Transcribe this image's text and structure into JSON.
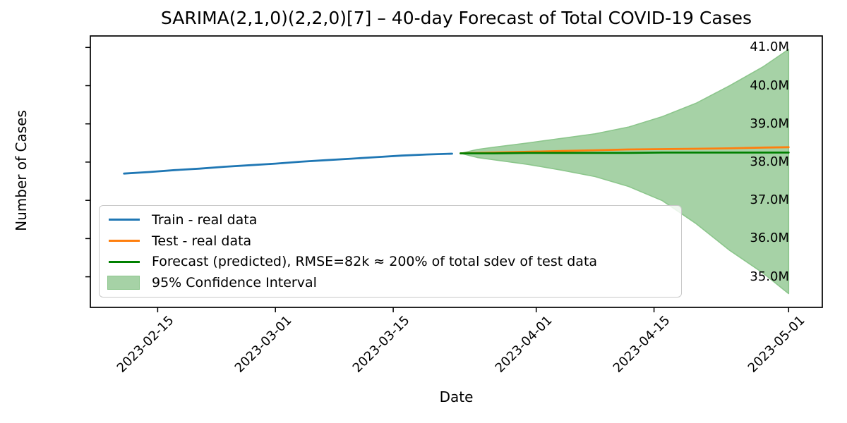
{
  "chart_data": {
    "type": "line",
    "title": "SARIMA(2,1,0)(2,2,0)[7] – 40-day Forecast of Total COVID-19 Cases",
    "xlabel": "Date",
    "ylabel": "Number of Cases",
    "value_unit": "millions of cases",
    "grid": false,
    "legend_position": "lower left",
    "xlim": [
      "2023-02-07",
      "2023-05-05"
    ],
    "ylim_m": [
      34.2,
      41.3
    ],
    "x_ticks": [
      "2023-02-15",
      "2023-03-01",
      "2023-03-15",
      "2023-04-01",
      "2023-04-15",
      "2023-05-01"
    ],
    "y_ticks_m": [
      35,
      36,
      37,
      38,
      39,
      40,
      41
    ],
    "y_tick_labels": [
      "35.0M",
      "36.0M",
      "37.0M",
      "38.0M",
      "39.0M",
      "40.0M",
      "41.0M"
    ],
    "series": [
      {
        "name": "Train - real data",
        "color": "#1f77b4",
        "x": [
          "2023-02-11",
          "2023-02-14",
          "2023-02-17",
          "2023-02-20",
          "2023-02-23",
          "2023-02-26",
          "2023-03-01",
          "2023-03-04",
          "2023-03-07",
          "2023-03-10",
          "2023-03-13",
          "2023-03-16",
          "2023-03-19",
          "2023-03-22"
        ],
        "y_m": [
          37.7,
          37.74,
          37.79,
          37.83,
          37.88,
          37.92,
          37.96,
          38.01,
          38.05,
          38.09,
          38.13,
          38.17,
          38.2,
          38.22
        ]
      },
      {
        "name": "Test - real data",
        "color": "#ff7f0e",
        "x": [
          "2023-03-23",
          "2023-03-27",
          "2023-03-31",
          "2023-04-04",
          "2023-04-08",
          "2023-04-12",
          "2023-04-16",
          "2023-04-20",
          "2023-04-24",
          "2023-04-28",
          "2023-05-01"
        ],
        "y_m": [
          38.23,
          38.25,
          38.27,
          38.29,
          38.31,
          38.33,
          38.34,
          38.35,
          38.36,
          38.38,
          38.39
        ]
      },
      {
        "name": "Forecast (predicted), RMSE=82k ≈ 200% of total sdev of test data",
        "color": "#008000",
        "x": [
          "2023-03-23",
          "2023-03-27",
          "2023-03-31",
          "2023-04-04",
          "2023-04-08",
          "2023-04-12",
          "2023-04-16",
          "2023-04-20",
          "2023-04-24",
          "2023-04-28",
          "2023-05-01"
        ],
        "y_m": [
          38.23,
          38.23,
          38.24,
          38.24,
          38.24,
          38.24,
          38.25,
          38.25,
          38.25,
          38.25,
          38.25
        ]
      }
    ],
    "confidence_band": {
      "name": "95% Confidence Interval",
      "fill_color": "#a6d2a6",
      "edge_color": "#8cc68c",
      "x": [
        "2023-03-23",
        "2023-03-25",
        "2023-03-27",
        "2023-03-31",
        "2023-04-04",
        "2023-04-08",
        "2023-04-12",
        "2023-04-16",
        "2023-04-20",
        "2023-04-24",
        "2023-04-28",
        "2023-05-01"
      ],
      "upper_m": [
        38.23,
        38.33,
        38.39,
        38.5,
        38.62,
        38.74,
        38.92,
        39.19,
        39.54,
        40.0,
        40.5,
        40.95
      ],
      "lower_m": [
        38.23,
        38.12,
        38.06,
        37.94,
        37.79,
        37.62,
        37.36,
        36.99,
        36.39,
        35.69,
        35.09,
        34.56
      ]
    }
  }
}
